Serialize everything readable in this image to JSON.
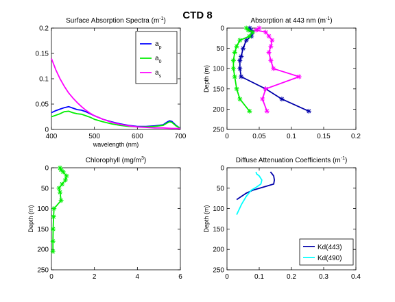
{
  "figure_title": "CTD 8",
  "chart_data": [
    {
      "id": "surface",
      "type": "line",
      "title": "Surface Absorption Spectra (m^-1)",
      "title_main": "Surface Absorption Spectra (m",
      "title_sup": "-1",
      "title_close": ")",
      "xlabel": "wavelength (nm)",
      "ylabel": "",
      "xlim": [
        400,
        700
      ],
      "ylim": [
        0,
        0.2
      ],
      "xticks": [
        400,
        500,
        600,
        700
      ],
      "yticks": [
        0,
        0.05,
        0.1,
        0.15,
        0.2
      ],
      "ytick_labels": [
        "0",
        "0.05",
        "0.1",
        "0.15",
        "0.2"
      ],
      "legend": "top-right",
      "series": [
        {
          "name": "a_p",
          "label": "a",
          "sub": "p",
          "color": "#0000ff",
          "marker": "none",
          "x": [
            400,
            410,
            420,
            430,
            440,
            450,
            460,
            470,
            480,
            490,
            500,
            520,
            540,
            560,
            580,
            600,
            620,
            640,
            660,
            670,
            675,
            680,
            690,
            700
          ],
          "y": [
            0.033,
            0.037,
            0.04,
            0.043,
            0.045,
            0.042,
            0.039,
            0.038,
            0.035,
            0.031,
            0.027,
            0.02,
            0.015,
            0.011,
            0.008,
            0.006,
            0.006,
            0.007,
            0.009,
            0.015,
            0.017,
            0.016,
            0.008,
            0.002
          ]
        },
        {
          "name": "a_0",
          "label": "a",
          "sub": "0",
          "color": "#00ee00",
          "marker": "none",
          "x": [
            400,
            410,
            420,
            430,
            440,
            450,
            460,
            470,
            480,
            490,
            500,
            520,
            540,
            560,
            580,
            600,
            620,
            640,
            660,
            670,
            675,
            680,
            690,
            700
          ],
          "y": [
            0.025,
            0.028,
            0.031,
            0.035,
            0.036,
            0.033,
            0.031,
            0.03,
            0.027,
            0.024,
            0.02,
            0.015,
            0.011,
            0.008,
            0.006,
            0.005,
            0.005,
            0.006,
            0.008,
            0.013,
            0.015,
            0.014,
            0.007,
            0.002
          ]
        },
        {
          "name": "a_s",
          "label": "a",
          "sub": "s",
          "color": "#ff00ff",
          "marker": "none",
          "x": [
            400,
            410,
            420,
            430,
            440,
            450,
            460,
            470,
            480,
            490,
            500,
            520,
            540,
            560,
            580,
            600,
            620,
            640,
            660,
            680,
            700
          ],
          "y": [
            0.14,
            0.118,
            0.1,
            0.085,
            0.072,
            0.062,
            0.053,
            0.045,
            0.038,
            0.032,
            0.027,
            0.02,
            0.014,
            0.01,
            0.007,
            0.005,
            0.004,
            0.003,
            0.003,
            0.002,
            0.002
          ]
        }
      ]
    },
    {
      "id": "absorption443",
      "type": "line",
      "title": "Absorption at 443 nm (m^-1)",
      "title_main": "Absorption at 443 nm (m",
      "title_sup": "-1",
      "title_close": ")",
      "xlabel": "",
      "ylabel": "Depth (m)",
      "xlim": [
        0,
        0.2
      ],
      "ylim": [
        0,
        250
      ],
      "y_reversed": true,
      "xticks": [
        0,
        0.05,
        0.1,
        0.15,
        0.2
      ],
      "xtick_labels": [
        "0",
        "0.05",
        "0.1",
        "0.15",
        "0.2"
      ],
      "yticks": [
        0,
        50,
        100,
        150,
        200,
        250
      ],
      "series": [
        {
          "name": "a_p",
          "color": "#0000aa",
          "marker": "star",
          "x": [
            0.035,
            0.037,
            0.039,
            0.038,
            0.03,
            0.025,
            0.022,
            0.02,
            0.02,
            0.022,
            0.06,
            0.085,
            0.127
          ],
          "y": [
            0,
            5,
            10,
            20,
            30,
            50,
            70,
            80,
            100,
            120,
            150,
            175,
            205
          ]
        },
        {
          "name": "a_0",
          "color": "#00ee00",
          "marker": "star",
          "x": [
            0.03,
            0.033,
            0.04,
            0.035,
            0.02,
            0.015,
            0.012,
            0.01,
            0.01,
            0.012,
            0.015,
            0.02,
            0.035
          ],
          "y": [
            0,
            5,
            10,
            20,
            30,
            45,
            60,
            80,
            100,
            120,
            150,
            175,
            205
          ]
        },
        {
          "name": "a_s",
          "color": "#ff00ff",
          "marker": "star",
          "x": [
            0.05,
            0.045,
            0.06,
            0.065,
            0.07,
            0.068,
            0.065,
            0.068,
            0.072,
            0.112,
            0.06,
            0.055,
            0.062
          ],
          "y": [
            0,
            5,
            10,
            20,
            30,
            45,
            60,
            80,
            100,
            120,
            150,
            175,
            205
          ]
        }
      ]
    },
    {
      "id": "chlorophyll",
      "type": "line",
      "title": "Chlorophyll (mg/m^3)",
      "title_main": "Chlorophyll (mg/m",
      "title_sup": "3",
      "title_close": ")",
      "xlabel": "",
      "ylabel": "Depth (m)",
      "xlim": [
        0,
        6
      ],
      "ylim": [
        0,
        250
      ],
      "y_reversed": true,
      "xticks": [
        0,
        2,
        4,
        6
      ],
      "yticks": [
        0,
        50,
        100,
        150,
        200,
        250
      ],
      "series": [
        {
          "name": "chlorophyll",
          "color": "#00ee00",
          "marker": "star",
          "x": [
            0.4,
            0.45,
            0.55,
            0.7,
            0.65,
            0.5,
            0.35,
            0.4,
            0.45,
            0.12,
            0.1,
            0.08,
            0.07,
            0.07
          ],
          "y": [
            0,
            5,
            10,
            20,
            30,
            40,
            50,
            60,
            80,
            100,
            120,
            150,
            180,
            205
          ]
        }
      ]
    },
    {
      "id": "kd",
      "type": "line",
      "title": "Diffuse Attenuation Coefficients (m^-1)",
      "title_main": "Diffuse Attenuation Coefficients (m",
      "title_sup": "-1",
      "title_close": ")",
      "xlabel": "",
      "ylabel": "Depth (m)",
      "xlim": [
        0,
        0.4
      ],
      "ylim": [
        0,
        250
      ],
      "y_reversed": true,
      "xticks": [
        0,
        0.1,
        0.2,
        0.3,
        0.4
      ],
      "xtick_labels": [
        "0",
        "0.1",
        "0.2",
        "0.3",
        "0.4"
      ],
      "yticks": [
        0,
        50,
        100,
        150,
        200,
        250
      ],
      "legend": "bottom-right",
      "series": [
        {
          "name": "Kd(443)",
          "label": "Kd(443)",
          "color": "#0000aa",
          "marker": "none",
          "x": [
            0.135,
            0.14,
            0.145,
            0.147,
            0.145,
            0.11,
            0.08,
            0.06,
            0.045,
            0.03
          ],
          "y": [
            10,
            15,
            20,
            30,
            40,
            48,
            55,
            62,
            70,
            78
          ]
        },
        {
          "name": "Kd(490)",
          "label": "Kd(490)",
          "color": "#00ffff",
          "marker": "none",
          "x": [
            0.09,
            0.092,
            0.1,
            0.108,
            0.105,
            0.09,
            0.075,
            0.06,
            0.045,
            0.03
          ],
          "y": [
            10,
            15,
            20,
            30,
            40,
            48,
            55,
            70,
            90,
            115
          ]
        }
      ]
    }
  ]
}
